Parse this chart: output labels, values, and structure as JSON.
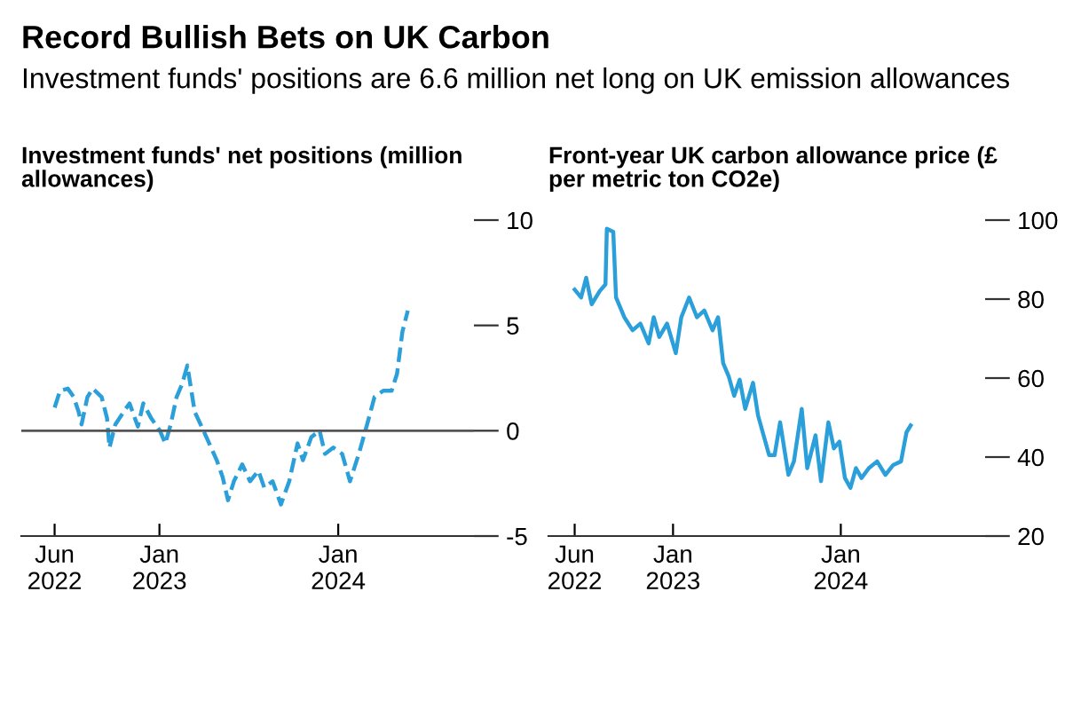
{
  "chart_data": [
    {
      "type": "line",
      "title": "Record Bullish Bets on UK Carbon",
      "subtitle": "Investment funds' positions are 6.6 million net long on UK emission allowances",
      "ylabel": "Investment funds' net positions (million allowances)",
      "line_style": "dashed",
      "grid": false,
      "xlim": [
        "2022-03-25",
        "2024-10-04"
      ],
      "xticks": [
        {
          "value": "2022-06-01",
          "label": "Jun\n2022"
        },
        {
          "value": "2023-01-01",
          "label": "Jan\n2023"
        },
        {
          "value": "2024-01-01",
          "label": "Jan\n2024"
        }
      ],
      "ylim": [
        -5,
        10
      ],
      "yticks": [
        -5,
        0,
        5,
        10
      ],
      "ref_lines": [
        {
          "axis": "y",
          "value": 0,
          "color": "#555555"
        }
      ],
      "series": [
        {
          "color": "#2b9fd9",
          "x": [
            "2022-06-01",
            "2022-06-12",
            "2022-06-28",
            "2022-07-10",
            "2022-07-20",
            "2022-07-26",
            "2022-08-07",
            "2022-08-18",
            "2022-09-05",
            "2022-09-16",
            "2022-09-21",
            "2022-10-03",
            "2022-10-20",
            "2022-11-01",
            "2022-11-18",
            "2022-11-29",
            "2022-12-15",
            "2023-01-02",
            "2023-01-13",
            "2023-01-24",
            "2023-02-05",
            "2023-02-16",
            "2023-02-27",
            "2023-03-14",
            "2023-04-01",
            "2023-04-28",
            "2023-05-10",
            "2023-05-21",
            "2023-06-02",
            "2023-06-19",
            "2023-07-05",
            "2023-07-22",
            "2023-08-03",
            "2023-08-20",
            "2023-09-06",
            "2023-09-23",
            "2023-10-10",
            "2023-10-21",
            "2023-11-07",
            "2023-11-24",
            "2023-12-05",
            "2023-12-22",
            "2024-01-09",
            "2024-01-25",
            "2024-02-12",
            "2024-02-29",
            "2024-03-15",
            "2024-04-02",
            "2024-04-19",
            "2024-04-30",
            "2024-05-11",
            "2024-05-22"
          ],
          "values": [
            1.1,
            1.9,
            2.0,
            1.6,
            0.9,
            0.3,
            1.6,
            2.0,
            1.6,
            0.6,
            -0.8,
            0.3,
            0.9,
            1.3,
            0.2,
            1.3,
            0.6,
            0.0,
            -0.6,
            0.3,
            1.6,
            2.2,
            3.1,
            0.9,
            0.0,
            -1.4,
            -2.2,
            -3.3,
            -2.4,
            -1.6,
            -2.4,
            -1.9,
            -2.7,
            -2.4,
            -3.5,
            -2.4,
            -0.6,
            -1.4,
            -0.3,
            0.0,
            -1.1,
            -0.8,
            -1.1,
            -2.4,
            -1.1,
            0.3,
            1.6,
            1.9,
            1.9,
            2.7,
            4.7,
            5.7
          ]
        }
      ]
    },
    {
      "type": "line",
      "ylabel": "Front-year UK carbon allowance price (£ per metric ton CO2e)",
      "line_style": "solid",
      "grid": false,
      "xlim": [
        "2022-04-05",
        "2024-11-10"
      ],
      "xticks": [
        {
          "value": "2022-06-01",
          "label": "Jun\n2022"
        },
        {
          "value": "2023-01-01",
          "label": "Jan\n2023"
        },
        {
          "value": "2024-01-01",
          "label": "Jan\n2024"
        }
      ],
      "ylim": [
        20,
        100
      ],
      "yticks": [
        20,
        40,
        60,
        80,
        100
      ],
      "series": [
        {
          "color": "#2b9fd9",
          "x": [
            "2022-06-01",
            "2022-06-15",
            "2022-06-26",
            "2022-07-08",
            "2022-07-26",
            "2022-08-07",
            "2022-08-10",
            "2022-08-24",
            "2022-08-30",
            "2022-09-17",
            "2022-10-05",
            "2022-10-22",
            "2022-11-09",
            "2022-11-20",
            "2022-12-02",
            "2022-12-19",
            "2023-01-07",
            "2023-01-19",
            "2023-02-05",
            "2023-02-22",
            "2023-03-10",
            "2023-03-28",
            "2023-04-09",
            "2023-04-20",
            "2023-05-02",
            "2023-05-14",
            "2023-05-26",
            "2023-06-07",
            "2023-06-24",
            "2023-07-05",
            "2023-07-29",
            "2023-08-10",
            "2023-08-22",
            "2023-09-09",
            "2023-09-21",
            "2023-10-08",
            "2023-10-20",
            "2023-11-07",
            "2023-11-19",
            "2023-12-05",
            "2023-12-17",
            "2023-12-29",
            "2024-01-10",
            "2024-01-22",
            "2024-02-03",
            "2024-02-15",
            "2024-03-02",
            "2024-03-20",
            "2024-04-07",
            "2024-04-24",
            "2024-05-11",
            "2024-05-23",
            "2024-06-01"
          ],
          "values": [
            82.4,
            80.4,
            85.4,
            78.7,
            82.1,
            83.7,
            97.8,
            97.0,
            80.4,
            75.4,
            72.1,
            73.8,
            68.8,
            75.4,
            70.4,
            73.8,
            66.3,
            75.4,
            80.4,
            75.4,
            77.1,
            72.1,
            75.4,
            63.8,
            60.5,
            55.5,
            59.6,
            52.2,
            58.8,
            50.5,
            40.5,
            40.5,
            48.8,
            35.5,
            38.9,
            52.2,
            37.2,
            45.5,
            33.9,
            48.8,
            42.2,
            43.9,
            34.7,
            32.2,
            37.2,
            34.7,
            37.2,
            38.9,
            35.5,
            38.0,
            38.9,
            46.3,
            48.0
          ]
        }
      ]
    }
  ]
}
